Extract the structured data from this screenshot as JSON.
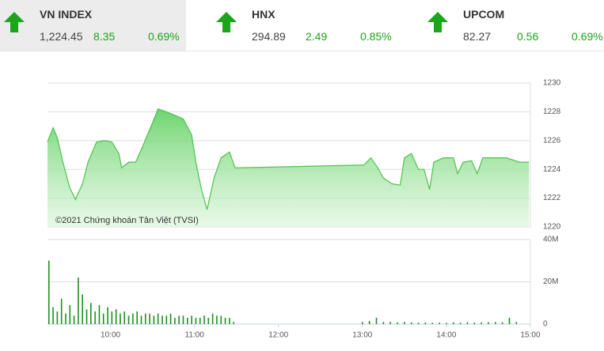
{
  "indices": [
    {
      "name": "VN INDEX",
      "value": "1,224.45",
      "change": "8.35",
      "percent": "0.69%"
    },
    {
      "name": "HNX",
      "value": "294.89",
      "change": "2.49",
      "percent": "0.85%"
    },
    {
      "name": "UPCOM",
      "value": "82.27",
      "change": "0.56",
      "percent": "0.69%"
    }
  ],
  "chart_data": [
    {
      "type": "area",
      "annotation": "©2021 Chứng khoán Tân Việt (TVSI)",
      "color": "#4cc44c",
      "x": [
        "09:15",
        "09:19",
        "09:22",
        "09:26",
        "09:31",
        "09:35",
        "09:40",
        "09:44",
        "09:50",
        "09:56",
        "10:01",
        "10:06",
        "10:08",
        "10:13",
        "10:18",
        "10:23",
        "10:29",
        "10:34",
        "10:40",
        "10:45",
        "10:52",
        "10:58",
        "11:01",
        "11:05",
        "11:09",
        "11:14",
        "11:19",
        "11:25",
        "11:29",
        "13:01",
        "13:06",
        "13:11",
        "13:15",
        "13:21",
        "13:27",
        "13:30",
        "13:35",
        "13:40",
        "13:44",
        "13:48",
        "13:51",
        "13:58",
        "14:05",
        "14:08",
        "14:12",
        "14:18",
        "14:22",
        "14:26",
        "14:35",
        "14:43",
        "14:52",
        "14:59"
      ],
      "values": [
        1225.9,
        1226.9,
        1226.2,
        1224.5,
        1222.7,
        1221.9,
        1223.0,
        1224.5,
        1225.9,
        1226.0,
        1225.9,
        1225.1,
        1224.1,
        1224.5,
        1224.5,
        1225.6,
        1227.0,
        1228.2,
        1228.0,
        1227.8,
        1227.5,
        1226.4,
        1224.5,
        1222.6,
        1221.2,
        1223.4,
        1224.8,
        1225.2,
        1224.1,
        1224.3,
        1224.8,
        1224.1,
        1223.4,
        1223.0,
        1222.9,
        1224.8,
        1225.1,
        1224.0,
        1224.0,
        1222.6,
        1224.5,
        1224.8,
        1224.8,
        1223.7,
        1224.5,
        1224.6,
        1223.7,
        1224.8,
        1224.8,
        1224.8,
        1224.5,
        1224.5
      ],
      "xlim": [
        "09:15",
        "15:00"
      ],
      "ylim": [
        1220,
        1230
      ],
      "yticks": [
        1220,
        1222,
        1224,
        1226,
        1228,
        1230
      ],
      "grid": true
    },
    {
      "type": "bar",
      "color": "#1f8f1f",
      "x": [
        "09:16",
        "09:19",
        "09:22",
        "09:25",
        "09:28",
        "09:31",
        "09:34",
        "09:37",
        "09:40",
        "09:43",
        "09:46",
        "09:49",
        "09:52",
        "09:55",
        "09:58",
        "10:01",
        "10:04",
        "10:07",
        "10:10",
        "10:13",
        "10:16",
        "10:19",
        "10:22",
        "10:25",
        "10:28",
        "10:31",
        "10:34",
        "10:37",
        "10:40",
        "10:43",
        "10:46",
        "10:49",
        "10:52",
        "10:55",
        "10:58",
        "11:01",
        "11:04",
        "11:07",
        "11:10",
        "11:13",
        "11:16",
        "11:19",
        "11:22",
        "11:25",
        "11:28",
        "13:00",
        "13:05",
        "13:10",
        "13:15",
        "13:20",
        "13:25",
        "13:30",
        "13:35",
        "13:40",
        "13:45",
        "13:50",
        "13:55",
        "14:00",
        "14:05",
        "14:10",
        "14:15",
        "14:20",
        "14:25",
        "14:30",
        "14:35",
        "14:40",
        "14:45",
        "14:50"
      ],
      "values": [
        30,
        8,
        6,
        12,
        5,
        9,
        4,
        22,
        14,
        7,
        10,
        6,
        9,
        5,
        8,
        6,
        7,
        5,
        6,
        4,
        5,
        6,
        4,
        5,
        5,
        4,
        5,
        4,
        4,
        5,
        3,
        4,
        4,
        3,
        4,
        3,
        3,
        4,
        3,
        5,
        4,
        4,
        3,
        3,
        1,
        1,
        1.5,
        3,
        1,
        1,
        0.8,
        1,
        0.8,
        0.7,
        0.8,
        0.6,
        0.7,
        0.6,
        0.8,
        0.7,
        0.9,
        0.7,
        0.8,
        0.9,
        1,
        0.8,
        3,
        1
      ],
      "xlim": [
        "09:15",
        "15:00"
      ],
      "xticks": [
        "10:00",
        "11:00",
        "12:00",
        "13:00",
        "14:00",
        "15:00"
      ],
      "ylim": [
        0,
        40
      ],
      "yticks": [
        0,
        {
          "value": 20,
          "label": "20M"
        },
        {
          "value": 40,
          "label": "40M"
        }
      ],
      "grid": true
    }
  ]
}
